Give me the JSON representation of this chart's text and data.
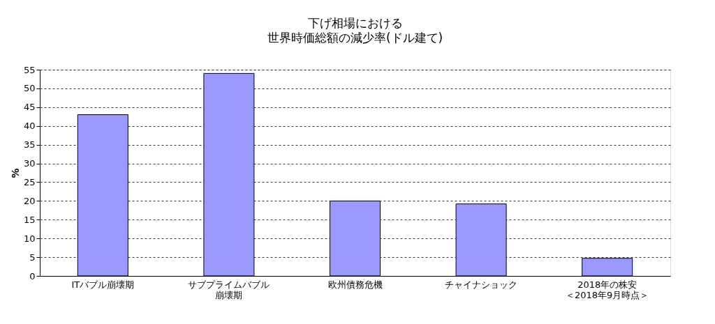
{
  "chart_data": {
    "type": "bar",
    "title": "下げ相場における",
    "subtitle": "世界時価総額の減少率(ドル建て)",
    "ylabel": "%",
    "categories": [
      "ITバブル崩壊期",
      "サブプライムバブル崩壊期",
      "欧州債務危機",
      "チャイナショック",
      "2018年の株安＜2018年9月時点＞"
    ],
    "series": [
      {
        "color": "#9999ff",
        "values": [
          43,
          54,
          20,
          19.2,
          4.7
        ]
      }
    ],
    "ylim": [
      0,
      55
    ],
    "yticks": [
      0,
      5,
      10,
      15,
      20,
      25,
      30,
      35,
      40,
      45,
      50,
      55
    ],
    "grid": "y"
  }
}
